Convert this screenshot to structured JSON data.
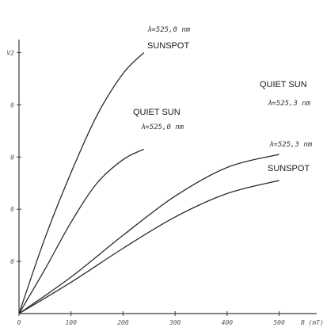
{
  "chart_data": {
    "type": "line",
    "xlabel": "B (mT)",
    "x_ticks": [
      "0",
      "100",
      "200",
      "300",
      "400",
      "500"
    ],
    "y_tick_labels": [
      "V2",
      "0",
      "0",
      "0",
      "0"
    ],
    "xlim": [
      0,
      560
    ],
    "ylim": [
      0,
      1.05
    ],
    "grid": false,
    "colors": {
      "curve": "#2a2a2a",
      "axis": "#3a3a3a"
    },
    "series": [
      {
        "label": "SUNSPOT",
        "wavelength": "λ=525,0 nm",
        "x": [
          0,
          50,
          100,
          150,
          200,
          240
        ],
        "y": [
          0,
          0.29,
          0.54,
          0.76,
          0.92,
          1.0
        ]
      },
      {
        "label": "QUIET SUN",
        "wavelength": "λ=525,0 nm",
        "x": [
          0,
          50,
          100,
          150,
          200,
          240
        ],
        "y": [
          0,
          0.17,
          0.35,
          0.5,
          0.59,
          0.63
        ]
      },
      {
        "label": "QUIET SUN",
        "wavelength": "λ=525,3 nm",
        "x": [
          0,
          100,
          200,
          300,
          400,
          500
        ],
        "y": [
          0,
          0.14,
          0.3,
          0.45,
          0.56,
          0.61
        ]
      },
      {
        "label": "SUNSPOT",
        "wavelength": "λ=525,3 nm",
        "x": [
          0,
          100,
          200,
          300,
          400,
          500
        ],
        "y": [
          0,
          0.12,
          0.25,
          0.37,
          0.46,
          0.51
        ]
      }
    ]
  }
}
